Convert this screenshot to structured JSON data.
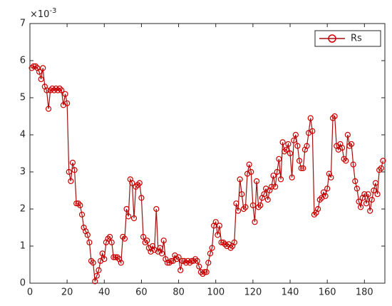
{
  "chart_data": {
    "type": "line",
    "y_multiplier": {
      "base": "×10",
      "exponent": "-3"
    },
    "x": [
      1,
      2,
      3,
      4,
      5,
      6,
      7,
      8,
      9,
      10,
      11,
      12,
      13,
      14,
      15,
      16,
      17,
      18,
      19,
      20,
      21,
      22,
      23,
      24,
      25,
      26,
      27,
      28,
      29,
      30,
      31,
      32,
      33,
      34,
      35,
      36,
      37,
      38,
      39,
      40,
      41,
      42,
      43,
      44,
      45,
      46,
      47,
      48,
      49,
      50,
      51,
      52,
      53,
      54,
      55,
      56,
      57,
      58,
      59,
      60,
      61,
      62,
      63,
      64,
      65,
      66,
      67,
      68,
      69,
      70,
      71,
      72,
      73,
      74,
      75,
      76,
      77,
      78,
      79,
      80,
      81,
      82,
      83,
      84,
      85,
      86,
      87,
      88,
      89,
      90,
      91,
      92,
      93,
      94,
      95,
      96,
      97,
      98,
      99,
      100,
      101,
      102,
      103,
      104,
      105,
      106,
      107,
      108,
      109,
      110,
      111,
      112,
      113,
      114,
      115,
      116,
      117,
      118,
      119,
      120,
      121,
      122,
      123,
      124,
      125,
      126,
      127,
      128,
      129,
      130,
      131,
      132,
      133,
      134,
      135,
      136,
      137,
      138,
      139,
      140,
      141,
      142,
      143,
      144,
      145,
      146,
      147,
      148,
      149,
      150,
      151,
      152,
      153,
      154,
      155,
      156,
      157,
      158,
      159,
      160,
      161,
      162,
      163,
      164,
      165,
      166,
      167,
      168,
      169,
      170,
      171,
      172,
      173,
      174,
      175,
      176,
      177,
      178,
      179,
      180,
      181,
      182,
      183,
      184,
      185,
      186,
      187,
      188,
      189,
      190
    ],
    "series": [
      {
        "name": "Rs",
        "color": "#cc0000",
        "line_color": "#a01010",
        "marker": "o",
        "values": [
          5.8,
          5.85,
          5.85,
          5.8,
          5.7,
          5.5,
          5.8,
          5.3,
          5.2,
          4.7,
          5.2,
          5.25,
          5.2,
          5.25,
          5.2,
          5.25,
          5.2,
          4.8,
          5.1,
          4.85,
          3.0,
          2.75,
          3.25,
          3.05,
          2.15,
          2.15,
          2.1,
          1.85,
          1.5,
          1.4,
          1.3,
          1.1,
          0.6,
          0.55,
          0.05,
          0.2,
          0.35,
          0.6,
          0.8,
          0.65,
          1.1,
          1.2,
          1.25,
          1.1,
          0.7,
          0.7,
          0.7,
          0.65,
          0.55,
          1.25,
          1.2,
          2.0,
          1.8,
          2.8,
          2.7,
          1.75,
          2.6,
          2.65,
          2.7,
          2.3,
          1.25,
          1.1,
          1.15,
          0.95,
          0.85,
          1.0,
          0.9,
          2.0,
          0.85,
          0.95,
          0.8,
          1.15,
          0.65,
          0.55,
          0.55,
          0.6,
          0.6,
          0.75,
          0.65,
          0.7,
          0.35,
          0.6,
          0.6,
          0.55,
          0.6,
          0.55,
          0.6,
          0.6,
          0.65,
          0.6,
          0.45,
          0.3,
          0.25,
          0.3,
          0.3,
          0.55,
          0.8,
          0.95,
          1.55,
          1.65,
          1.3,
          1.55,
          1.1,
          1.1,
          1.05,
          1.0,
          1.05,
          0.95,
          1.0,
          1.1,
          2.15,
          1.95,
          2.8,
          2.4,
          2.0,
          2.05,
          2.95,
          3.2,
          3.0,
          2.1,
          1.65,
          2.75,
          2.05,
          2.1,
          2.3,
          2.4,
          2.55,
          2.25,
          2.5,
          2.6,
          2.9,
          2.6,
          3.0,
          3.35,
          2.8,
          3.8,
          3.55,
          3.6,
          3.75,
          3.5,
          2.85,
          3.85,
          4.0,
          3.7,
          3.3,
          3.1,
          3.1,
          3.6,
          3.7,
          4.05,
          4.45,
          4.1,
          1.85,
          1.9,
          2.0,
          2.25,
          2.3,
          2.45,
          2.35,
          2.55,
          2.95,
          2.85,
          4.45,
          4.5,
          3.7,
          3.6,
          3.75,
          3.65,
          3.35,
          3.3,
          4.0,
          3.7,
          3.75,
          3.2,
          2.75,
          2.55,
          2.2,
          2.05,
          2.3,
          2.4,
          2.15,
          2.4,
          1.95,
          2.25,
          2.5,
          2.7,
          2.4,
          3.05,
          3.1,
          3.3
        ]
      }
    ],
    "xlim": [
      0,
      191
    ],
    "ylim": [
      0,
      7
    ],
    "xticks": [
      0,
      20,
      40,
      60,
      80,
      100,
      120,
      140,
      160,
      180
    ],
    "yticks": [
      0,
      1,
      2,
      3,
      4,
      5,
      6,
      7
    ],
    "legend": "upper right"
  }
}
